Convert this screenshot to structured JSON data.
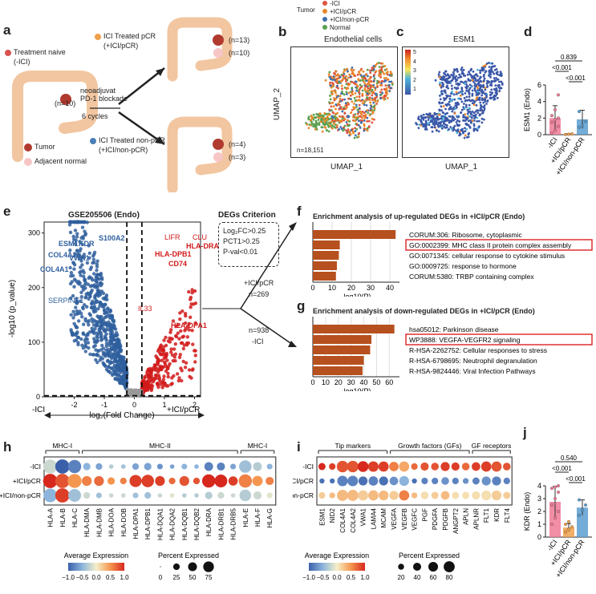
{
  "panel_labels": [
    "a",
    "b",
    "c",
    "d",
    "e",
    "f",
    "g",
    "h",
    "i",
    "j"
  ],
  "a": {
    "treatment_naive": "Treatment naive",
    "treatment_naive_sub": "(-ICI)",
    "n_naive": "(n=10)",
    "neoadj_line1": "neoadjuvat",
    "neoadj_line2": "PD-1 blockade",
    "cycles": "6 cycles",
    "pcr_label": "ICI Treated pCR",
    "pcr_sub": "(+ICI/pCR)",
    "pcr_n_tumor": "(n=13)",
    "pcr_n_adj": "(n=10)",
    "npcr_label": "ICI Treated non-pCR",
    "npcr_sub": "(+ICI/non-pCR)",
    "npcr_n_tumor": "(n=4)",
    "npcr_n_adj": "(n=3)",
    "legend_tumor": "Tumor",
    "legend_adjacent": "Adjacent normal",
    "colors": {
      "naive": "#d9534f",
      "pcr": "#f0a04b",
      "npcr": "#4a7fb5",
      "tumor": "#b03a2e",
      "adjacent": "#f6c6c6",
      "colon": "#f2c6a0"
    }
  },
  "b": {
    "legend_title": "Tumor",
    "legend_items": [
      {
        "label": "-ICI",
        "color": "#e0533c"
      },
      {
        "label": "+ICI/pCR",
        "color": "#e8882a"
      },
      {
        "label": "+ICI/non-pCR",
        "color": "#3f6fb0"
      },
      {
        "label": "Normal",
        "color": "#5aa050"
      }
    ],
    "title": "Endothelial cells",
    "xlabel": "UMAP_1",
    "ylabel": "UMAP_2",
    "n_cells": "n=18,151"
  },
  "c": {
    "title": "ESM1",
    "xlabel": "UMAP_1",
    "colorbar_ticks": [
      "5",
      "4",
      "3",
      "2",
      "1"
    ]
  },
  "d": {
    "ylabel": "ESM1 (Endo)",
    "chart_data": {
      "type": "bar",
      "categories": [
        "-ICI",
        "+ICI/pCR",
        "+ICI/non-pCR"
      ],
      "values": [
        2.0,
        0.05,
        1.85
      ],
      "errors": [
        1.5,
        0.05,
        1.1
      ],
      "ylim": [
        0,
        6
      ],
      "yticks": [
        "0",
        "2",
        "4",
        "6"
      ],
      "colors": [
        "#f07a96",
        "#f0a04b",
        "#5a9ed0"
      ],
      "points": [
        [
          0.2,
          0.5,
          1.0,
          1.5,
          1.8,
          2.0,
          2.3,
          3.0,
          4.8
        ],
        [
          0.02,
          0.05,
          0.1
        ],
        [
          0.9,
          1.1,
          1.6,
          2.8
        ]
      ],
      "sig": [
        {
          "pair": [
            0,
            1
          ],
          "label": "<0.001"
        },
        {
          "pair": [
            1,
            2
          ],
          "label": "<0.001"
        },
        {
          "pair": [
            0,
            2
          ],
          "label": "0.839"
        }
      ]
    }
  },
  "e": {
    "title": "GSE205506 (Endo)",
    "ylabel": "-log10 (p_value)",
    "xlabel": "log₂(Fold Change)",
    "left_arrow": "-ICI",
    "right_arrow": "+ICI/pCR",
    "criterion_title": "DEGs Criterion",
    "criterion_lines": [
      "Log₂FC>0.25",
      "PCT1>0.25",
      "P-val<0.01"
    ],
    "up_group": "+ICI/pCR",
    "up_n": "n=269",
    "down_n": "n=938",
    "down_group": "-ICI",
    "genes_blue": [
      "ESM1",
      "KDR",
      "S100A2",
      "COL4A2",
      "VWA1",
      "COL4A1",
      "SERPINE1"
    ],
    "genes_red": [
      "LIFR",
      "CLU",
      "HLA-DRA",
      "HLA-DPB1",
      "CD74",
      "IL33",
      "HLA-DPA1"
    ],
    "chart_data": {
      "type": "scatter",
      "xlim": [
        -3,
        2.2
      ],
      "ylim": [
        0,
        320
      ],
      "xticks": [
        "-2",
        "-1",
        "0",
        "1",
        "2"
      ],
      "yticks": [
        "0",
        "100",
        "200",
        "300"
      ],
      "thresholds": {
        "x": [
          -0.25,
          0.25
        ],
        "y": 2
      }
    }
  },
  "f": {
    "title": "Enrichment analysis of up-regulated DEGs in +ICI/pCR (Endo)",
    "xlabel": "-log10(P)",
    "xticks": [
      "0",
      "10",
      "20",
      "30",
      "40"
    ],
    "chart_data": {
      "type": "bar",
      "categories": [
        "CORUM:306: Ribosome, cytoplasmic",
        "GO:0002399: MHC class II protein complex assembly",
        "GO:0071345: cellular response to cytokine stimulus",
        "GO:0009725: response to hormone",
        "CORUM:5380: TRBP containing complex"
      ],
      "values": [
        43,
        14,
        13.5,
        12.5,
        12
      ],
      "xlim": [
        0,
        45
      ]
    },
    "highlight_index": 1
  },
  "g": {
    "title": "Enrichment analysis of down-regulated DEGs in +ICI/pCR (Endo)",
    "xlabel": "-log10(P)",
    "xticks": [
      "0",
      "10",
      "20",
      "30",
      "40",
      "50",
      "60"
    ],
    "chart_data": {
      "type": "bar",
      "categories": [
        "hsa05012: Parkinson disease",
        "WP3888: VEGFA-VEGFR2 signaling",
        "R-HSA-2262752: Cellular responses to stress",
        "R-HSA-6798695: Neutrophil degranulation",
        "R-HSA-9824446: Viral Infection Pathways"
      ],
      "values": [
        64,
        46,
        45,
        40,
        39
      ],
      "xlim": [
        0,
        68
      ]
    },
    "highlight_index": 1
  },
  "h": {
    "groups": [
      {
        "label": "MHC-I"
      },
      {
        "label": "MHC-II"
      },
      {
        "label": "MHC-I"
      }
    ],
    "rows": [
      "-ICI",
      "+ICI/pCR",
      "+ICI/non-pCR"
    ],
    "genes": [
      "HLA-A",
      "HLA-B",
      "HLA-C",
      "HLA-DMA",
      "HLA-DMB",
      "HLA-DOA",
      "HLA-DOB",
      "HLA-DPA1",
      "HLA-DPB1",
      "HLA-DQA1",
      "HLA-DQA2",
      "HLA-DQB1",
      "HLA-DQB2",
      "HLA-DRA",
      "HLA-DRB1",
      "HLA-DRB5",
      "HLA-E",
      "HLA-F",
      "HLA-G"
    ],
    "expr": [
      [
        -0.2,
        -1.0,
        -0.8,
        -0.5,
        -0.6,
        -0.3,
        -0.4,
        -0.6,
        -0.6,
        -0.7,
        -0.6,
        -0.5,
        -0.5,
        -0.8,
        -0.8,
        -0.6,
        -0.4,
        -0.3,
        -0.5
      ],
      [
        1.0,
        0.8,
        0.5,
        0.6,
        0.7,
        0.5,
        0.6,
        0.9,
        0.9,
        0.9,
        0.7,
        0.8,
        0.8,
        1.0,
        1.0,
        0.9,
        0.6,
        0.5,
        0.6
      ],
      [
        -0.5,
        0.9,
        -0.4,
        -0.2,
        -0.4,
        -0.2,
        -0.2,
        -0.4,
        -0.4,
        -0.2,
        -0.1,
        -0.3,
        -0.3,
        -0.3,
        -0.2,
        -0.2,
        -0.3,
        -0.2,
        -0.1
      ]
    ],
    "pct": [
      [
        90,
        95,
        80,
        20,
        15,
        5,
        5,
        15,
        20,
        10,
        5,
        10,
        5,
        30,
        25,
        10,
        70,
        30,
        10
      ],
      [
        95,
        95,
        90,
        40,
        40,
        20,
        15,
        65,
        70,
        40,
        15,
        40,
        15,
        80,
        75,
        35,
        80,
        45,
        25
      ],
      [
        85,
        95,
        75,
        15,
        10,
        5,
        5,
        10,
        15,
        5,
        5,
        5,
        5,
        20,
        15,
        5,
        60,
        25,
        10
      ]
    ],
    "legend_expr_title": "Average Expression",
    "legend_expr_ticks": [
      "−1.0",
      "−0.5",
      "0.0",
      "0.5",
      "1.0"
    ],
    "legend_pct_title": "Percent Expressed",
    "legend_pct_ticks": [
      "0",
      "25",
      "50",
      "75"
    ]
  },
  "i": {
    "groups": [
      {
        "label": "Tip markers"
      },
      {
        "label": "Growth factors (GFs)"
      },
      {
        "label": "GF receptors"
      }
    ],
    "rows": [
      "-ICI",
      "+ICI/pCR",
      "+ICI/non-pCR"
    ],
    "genes": [
      "ESM1",
      "NID2",
      "COL4A1",
      "COL4A2",
      "VWA1",
      "LAMA4",
      "MCAM",
      "VEGFA",
      "VEGFB",
      "VEGFC",
      "PGF",
      "PDGFA",
      "PDGFB",
      "ANGPT2",
      "APLN",
      "APLNR",
      "FLT1",
      "KDR",
      "FLT4"
    ],
    "expr": [
      [
        1.0,
        0.9,
        0.8,
        0.8,
        1.0,
        0.9,
        0.9,
        0.6,
        0.4,
        0.7,
        0.8,
        0.8,
        0.9,
        0.9,
        0.7,
        0.9,
        0.9,
        0.8,
        0.8
      ],
      [
        -0.9,
        -0.9,
        -0.8,
        -0.8,
        -0.9,
        -0.8,
        -0.9,
        -0.7,
        -0.5,
        -0.9,
        -0.8,
        -0.8,
        -0.7,
        -0.8,
        -0.7,
        -0.8,
        -0.7,
        -0.8,
        -0.8
      ],
      [
        0.2,
        0.3,
        0.3,
        0.3,
        0.2,
        0.3,
        0.3,
        0.2,
        0.6,
        0.3,
        0.1,
        0.2,
        0.3,
        0.1,
        0.1,
        0.1,
        0.1,
        0.2,
        0.2
      ]
    ],
    "pct": [
      [
        25,
        20,
        80,
        80,
        70,
        65,
        60,
        50,
        60,
        20,
        35,
        30,
        45,
        35,
        30,
        40,
        60,
        60,
        30
      ],
      [
        10,
        10,
        65,
        65,
        45,
        50,
        45,
        40,
        55,
        10,
        20,
        20,
        30,
        20,
        15,
        25,
        45,
        45,
        20
      ],
      [
        20,
        15,
        75,
        75,
        60,
        60,
        55,
        45,
        60,
        15,
        30,
        25,
        40,
        25,
        25,
        35,
        55,
        55,
        25
      ]
    ],
    "legend_expr_title": "Average Expression",
    "legend_expr_ticks": [
      "−1.0",
      "−0.5",
      "0.0",
      "0.5",
      "1.0"
    ],
    "legend_pct_title": "Percent Expressed",
    "legend_pct_ticks": [
      "20",
      "40",
      "60",
      "80"
    ]
  },
  "j": {
    "ylabel": "KDR (Endo)",
    "chart_data": {
      "type": "bar",
      "categories": [
        "-ICI",
        "+ICI/pCR",
        "+ICI/non-pCR"
      ],
      "values": [
        2.75,
        0.75,
        2.3
      ],
      "errors": [
        1.2,
        0.3,
        0.6
      ],
      "ylim": [
        0,
        4
      ],
      "yticks": [
        "0",
        "1",
        "2",
        "3",
        "4"
      ],
      "colors": [
        "#f07a96",
        "#f0a04b",
        "#5a9ed0"
      ],
      "points": [
        [
          1.0,
          1.5,
          2.0,
          2.5,
          3.0,
          3.5,
          3.8,
          3.9,
          4.0
        ],
        [
          0.4,
          0.6,
          0.8,
          1.0,
          1.2
        ],
        [
          1.7,
          2.1,
          2.5,
          2.9
        ]
      ],
      "sig": [
        {
          "pair": [
            0,
            1
          ],
          "label": "<0.001"
        },
        {
          "pair": [
            1,
            2
          ],
          "label": "<0.001"
        },
        {
          "pair": [
            0,
            2
          ],
          "label": "0.540"
        }
      ]
    }
  }
}
